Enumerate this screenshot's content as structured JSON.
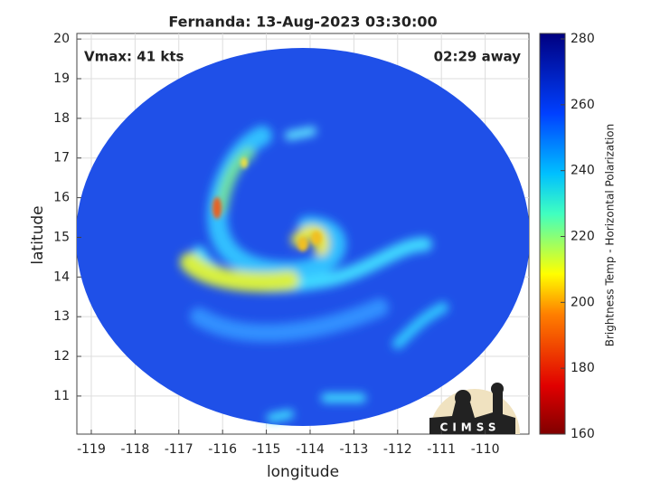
{
  "chart_data": {
    "type": "map",
    "title": "Fernanda: 13-Aug-2023 03:30:00",
    "x_label": "longitude",
    "y_label": "latitude",
    "annotations": {
      "left": "Vmax: 41 kts",
      "right": "02:29 away"
    },
    "xlim": [
      -119.33,
      -109.0
    ],
    "xticks": [
      -119,
      -118,
      -117,
      -116,
      -115,
      -114,
      -113,
      -112,
      -111,
      -110
    ],
    "ylim": [
      10.04,
      20.14
    ],
    "yticks": [
      11,
      12,
      13,
      14,
      15,
      16,
      17,
      18,
      19,
      20
    ],
    "grid": true,
    "colorbar": {
      "label": "Brightness Temp - Horizontal Polarization",
      "lim": [
        160,
        280
      ],
      "ticks": [
        160,
        180,
        200,
        220,
        240,
        260,
        280
      ]
    },
    "logo_text": "CIMSS"
  }
}
